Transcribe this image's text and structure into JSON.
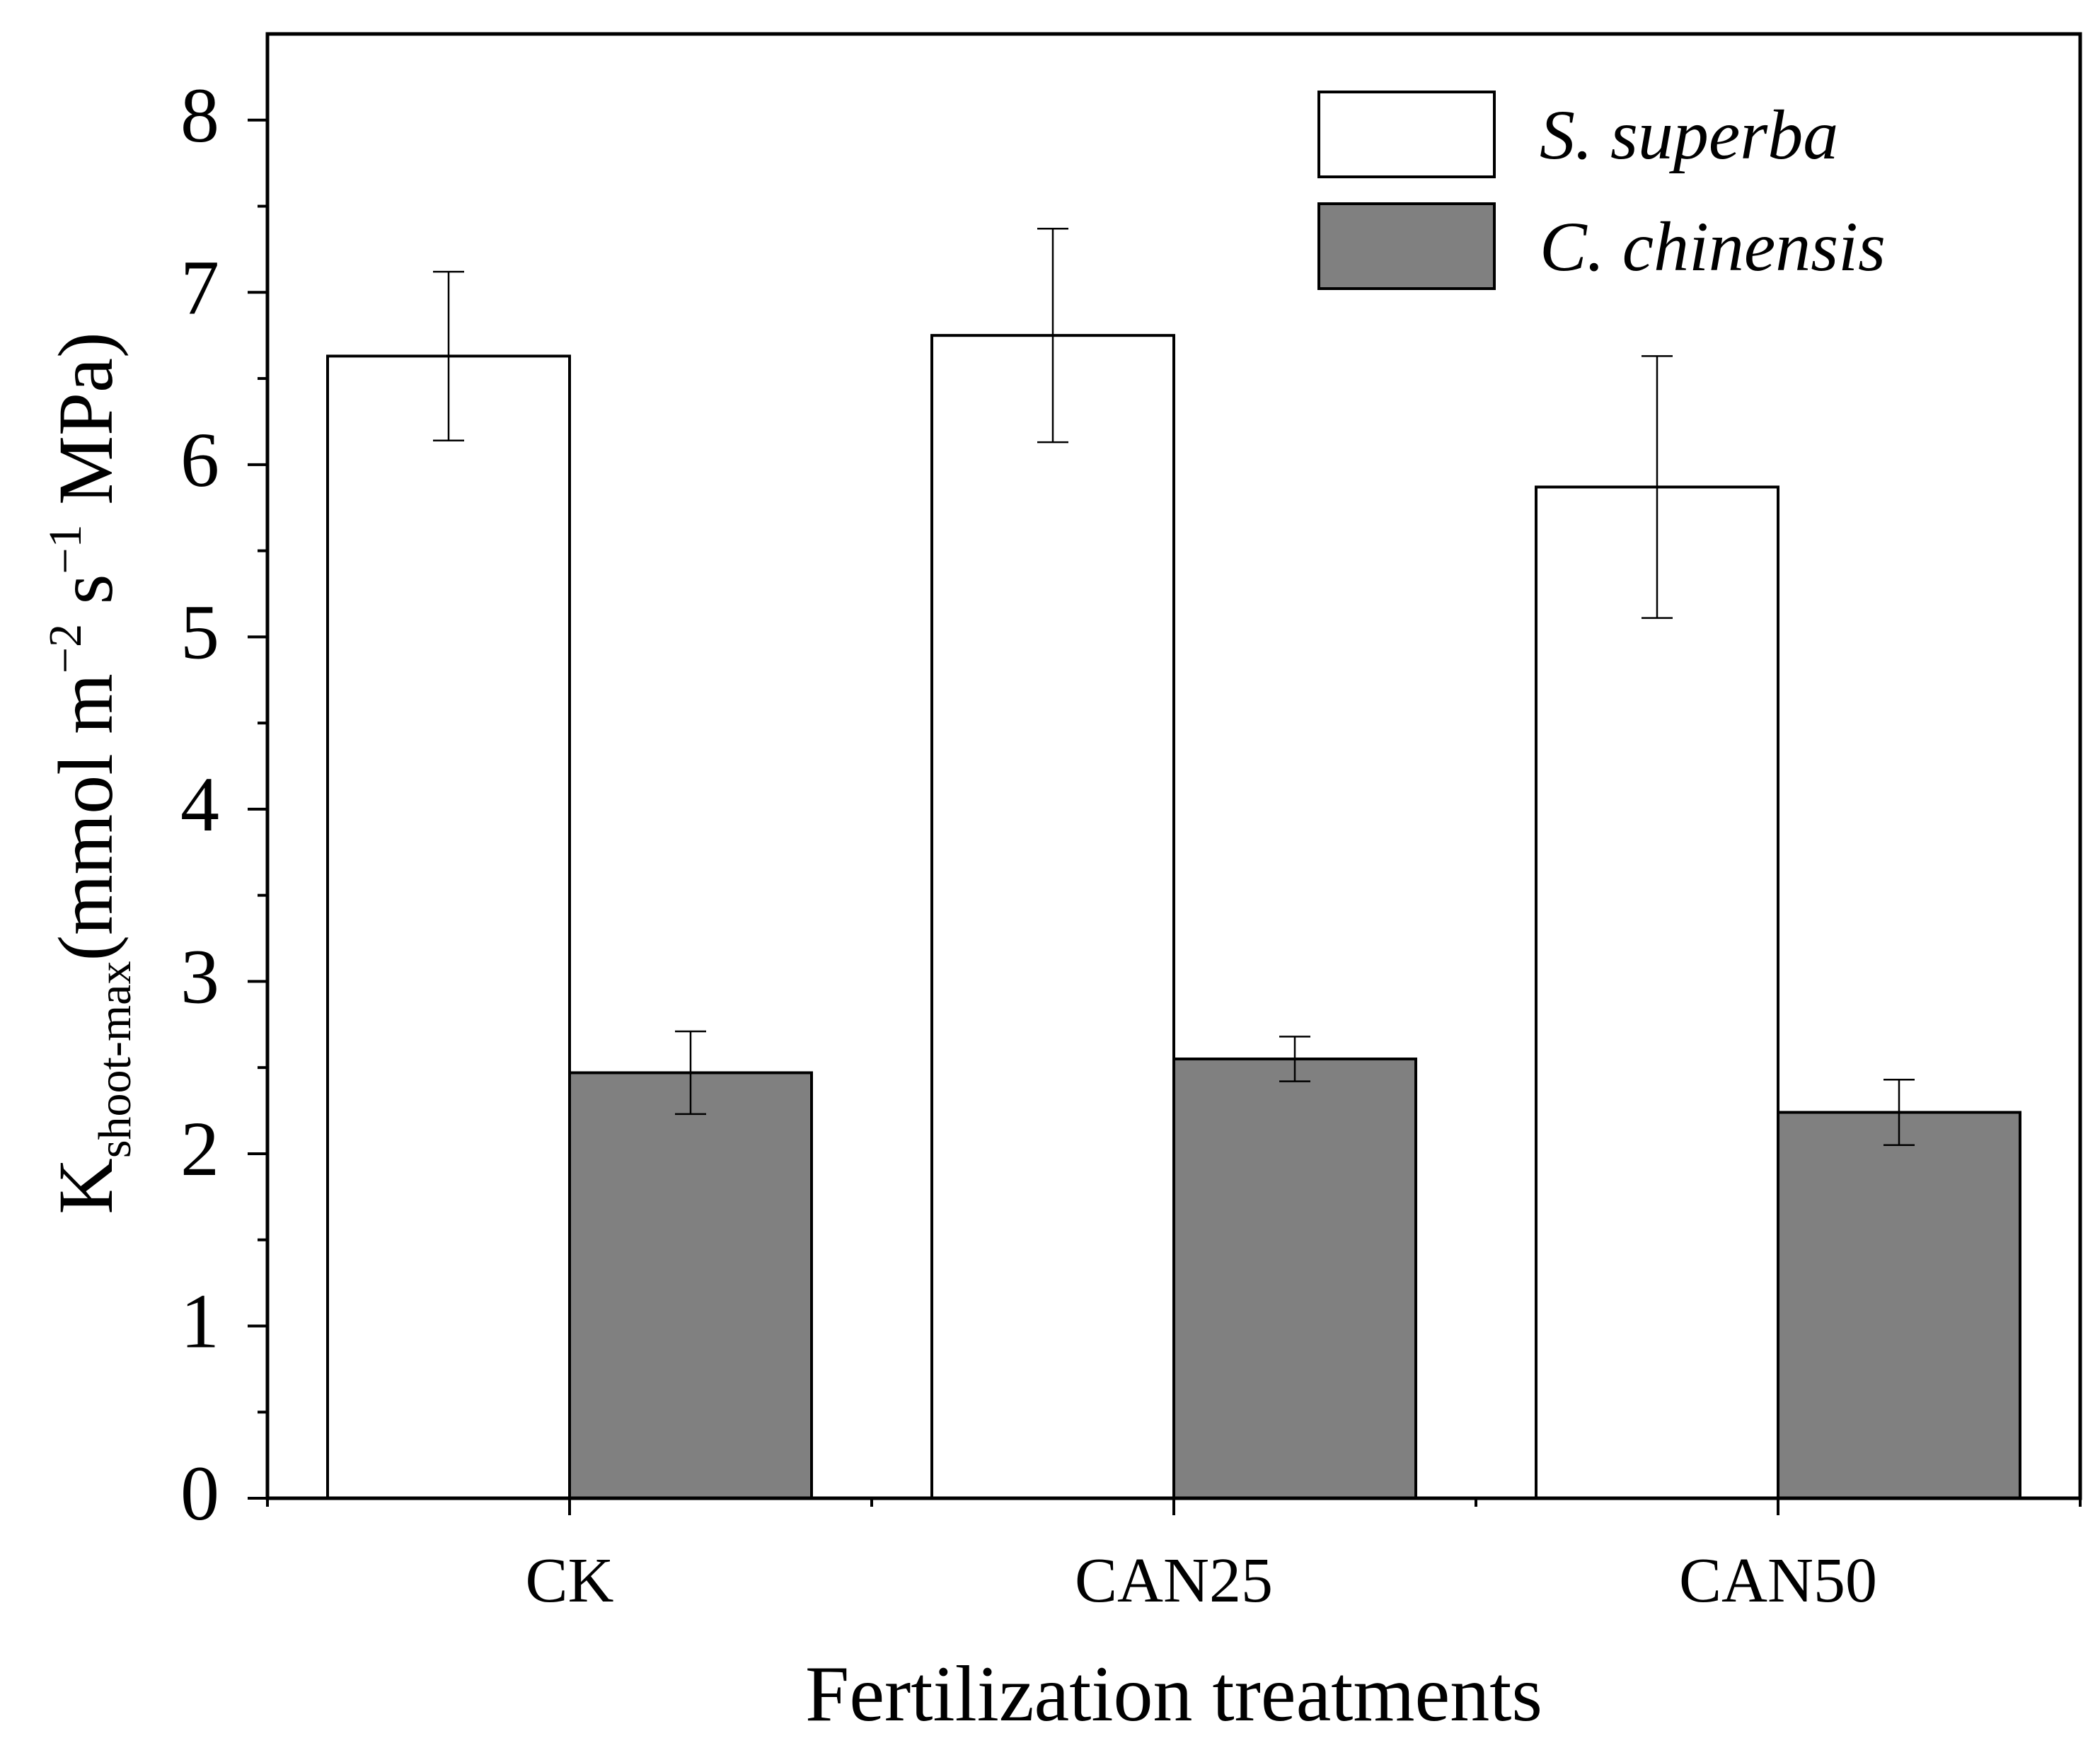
{
  "chart_data": {
    "type": "bar",
    "title": "",
    "categories": [
      "CK",
      "CAN25",
      "CAN50"
    ],
    "series": [
      {
        "name": "S. superba",
        "values": [
          6.63,
          6.75,
          5.87
        ],
        "errors": [
          0.49,
          0.62,
          0.76
        ],
        "color": "#ffffff"
      },
      {
        "name": "C. chinensis",
        "values": [
          2.47,
          2.55,
          2.24
        ],
        "errors": [
          0.24,
          0.13,
          0.19
        ],
        "color": "#808080"
      }
    ],
    "xlabel": "Fertilization treatments",
    "ylabel": {
      "main": "K",
      "subscript": "shoot-max",
      "units": "(mmol m",
      "exp1": "−2",
      "mid": " s",
      "exp2": "−1",
      "end": " MPa)"
    },
    "ylim": [
      0,
      8.5
    ],
    "yticks": [
      0,
      1,
      2,
      3,
      4,
      5,
      6,
      7,
      8
    ],
    "ytick_labels": [
      "0",
      "1",
      "2",
      "3",
      "4",
      "5",
      "6",
      "7",
      "8"
    ],
    "legend_position": "top-right",
    "grid": false
  }
}
